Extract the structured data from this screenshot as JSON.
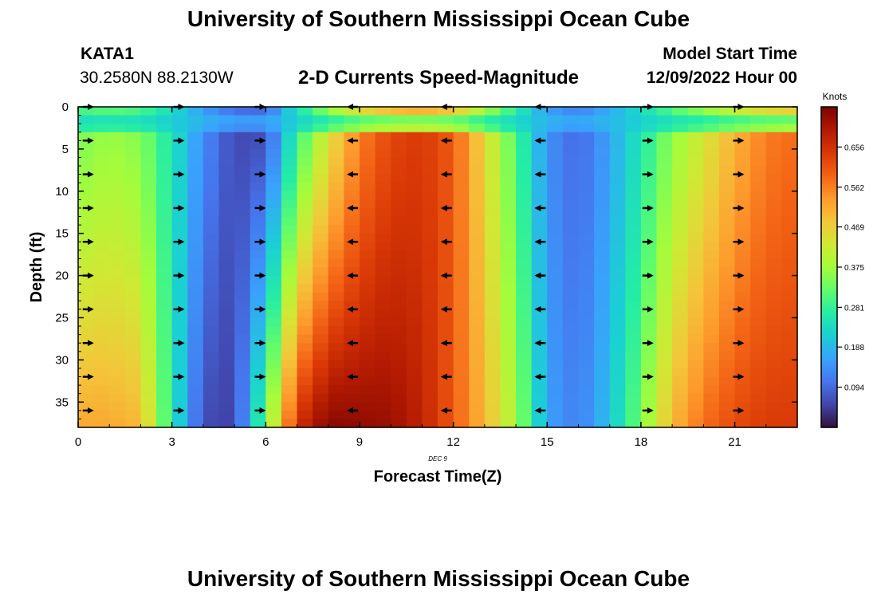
{
  "header": {
    "title": "University of Southern Mississippi Ocean Cube",
    "station_id": "KATA1",
    "coordinates": "30.2580N  88.2130W",
    "subtitle": "2-D Currents Speed-Magnitude",
    "model_start_label": "Model Start Time",
    "model_start_value": "12/09/2022 Hour 00"
  },
  "footer": {
    "title": "University of Southern Mississippi Ocean Cube"
  },
  "chart_data": {
    "type": "heatmap",
    "title": "2-D Currents Speed-Magnitude",
    "xlabel": "Forecast Time(Z)",
    "ylabel": "Depth (ft)",
    "date_label": "DEC 9",
    "xlim": [
      0,
      23
    ],
    "ylim": [
      38,
      0
    ],
    "x_ticks": [
      0,
      3,
      6,
      9,
      12,
      15,
      18,
      21
    ],
    "y_ticks": [
      0,
      5,
      10,
      15,
      20,
      25,
      30,
      35
    ],
    "colorbar": {
      "label": "Knots",
      "range": [
        0.0,
        0.75
      ],
      "ticks": [
        0.094,
        0.188,
        0.281,
        0.375,
        0.469,
        0.562,
        0.656
      ],
      "tick_labels": [
        "0.094",
        "0.188",
        "0.281",
        "0.375",
        "0.469",
        "0.562",
        "0.656"
      ],
      "colors": [
        "#30123b",
        "#4145ab",
        "#4675ed",
        "#39a2fc",
        "#1bcfd4",
        "#24eca6",
        "#61fc6c",
        "#a4fc3b",
        "#d1e834",
        "#f3c63a",
        "#fe9b2d",
        "#f36315",
        "#d93806",
        "#b11901",
        "#7a0403"
      ]
    },
    "arrow_times": [
      0.3,
      3.2,
      5.8,
      8.8,
      11.8,
      14.8,
      18.2,
      21.1
    ],
    "arrow_depths": [
      0,
      4,
      8,
      12,
      16,
      20,
      24,
      28,
      32,
      36
    ],
    "arrow_direction": [
      "east",
      "east",
      "east",
      "west",
      "west",
      "west",
      "east",
      "east"
    ],
    "surface_profile": {
      "hours": [
        0,
        1,
        2,
        3,
        4,
        5,
        6,
        7,
        8,
        9,
        10,
        11,
        12,
        13,
        14,
        15,
        16,
        17,
        18,
        19,
        20,
        21,
        22,
        23
      ],
      "speeds": [
        0.33,
        0.36,
        0.34,
        0.25,
        0.14,
        0.06,
        0.05,
        0.26,
        0.42,
        0.55,
        0.62,
        0.64,
        0.6,
        0.45,
        0.3,
        0.14,
        0.09,
        0.16,
        0.25,
        0.35,
        0.42,
        0.5,
        0.56,
        0.58
      ]
    },
    "bottom_profile": {
      "hours": [
        0,
        1,
        2,
        3,
        4,
        5,
        6,
        7,
        8,
        9,
        10,
        11,
        12,
        13,
        14,
        15,
        16,
        17,
        18,
        19,
        20,
        21,
        22,
        23
      ],
      "speeds": [
        0.52,
        0.52,
        0.5,
        0.26,
        0.06,
        0.05,
        0.33,
        0.66,
        0.74,
        0.73,
        0.72,
        0.68,
        0.6,
        0.5,
        0.38,
        0.16,
        0.12,
        0.2,
        0.34,
        0.5,
        0.58,
        0.62,
        0.64,
        0.64
      ]
    },
    "surface_layer_depth": 3.5,
    "surface_layer_speed": 0.2
  }
}
